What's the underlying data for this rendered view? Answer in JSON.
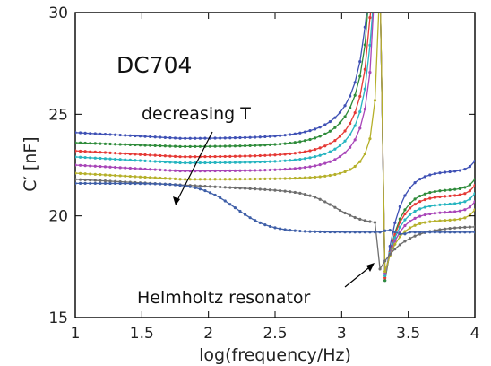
{
  "chart_data": {
    "type": "line",
    "xlabel": "log(frequency/Hz)",
    "ylabel": "C′ [nF]",
    "xlim": [
      1,
      4
    ],
    "ylim": [
      15,
      30
    ],
    "x_ticks": [
      1,
      1.5,
      2,
      2.5,
      3,
      3.5,
      4
    ],
    "x_tick_labels": [
      "1",
      "1.5",
      "2",
      "2.5",
      "3",
      "3.5",
      "4"
    ],
    "y_ticks": [
      15,
      20,
      25,
      30
    ],
    "y_tick_labels": [
      "15",
      "20",
      "25",
      "30"
    ],
    "grid": false,
    "markers": true,
    "annotations": {
      "sample": "DC704",
      "decreasing": "decreasing T",
      "resonator": "Helmholtz resonator"
    },
    "series": [
      {
        "color": "#3f51b5",
        "low_level": 24.1,
        "dip": 23.8,
        "resonance_amp": 14.0,
        "tail_offset": 0.0,
        "final": 22.2
      },
      {
        "color": "#2e8b3a",
        "low_level": 23.6,
        "dip": 23.4,
        "resonance_amp": 12.8,
        "tail_offset": 0.7,
        "final": 21.3
      },
      {
        "color": "#e53935",
        "low_level": 23.2,
        "dip": 22.9,
        "resonance_amp": 11.0,
        "tail_offset": 1.1,
        "final": 21.0
      },
      {
        "color": "#26b5c0",
        "low_level": 22.9,
        "dip": 22.6,
        "resonance_amp": 9.3,
        "tail_offset": 1.5,
        "final": 20.6
      },
      {
        "color": "#a845b8",
        "low_level": 22.5,
        "dip": 22.2,
        "resonance_amp": 7.8,
        "tail_offset": 1.9,
        "final": 20.2
      },
      {
        "color": "#b5b02a",
        "low_level": 22.1,
        "dip": 21.8,
        "resonance_amp": 3.2,
        "tail_offset": 2.3,
        "final": 19.8
      },
      {
        "color": "#6d6d6d",
        "low_level": 21.8,
        "dip": 21.5,
        "resonance_amp": 0.0,
        "tail_offset": 2.6,
        "final": 19.5
      },
      {
        "color": "#3f5fa8",
        "low_level": 21.6,
        "dip": 19.2,
        "resonance_amp": 0.0,
        "tail_offset": 3.0,
        "final": 19.2
      }
    ]
  }
}
